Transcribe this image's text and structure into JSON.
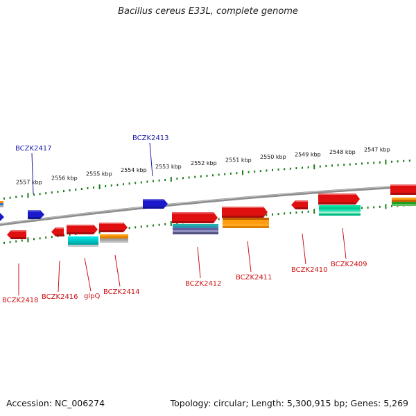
{
  "title": "Bacillus cereus E33L, complete genome",
  "footer": {
    "accession": "Accession: NC_006274",
    "summary": "Topology: circular; Length: 5,300,915 bp; Genes: 5,269"
  },
  "colors": {
    "backbone": "#8c8c8c",
    "ticks": "#1a7a1a",
    "top_gene": "#1a1acc",
    "bottom_gene": "#e01010",
    "top_label": "#1a1aa8",
    "bottom_label": "#cc1010"
  },
  "scale_labels": [
    "2557 kbp",
    "2556 kbp",
    "2555 kbp",
    "2554 kbp",
    "2553 kbp",
    "2552 kbp",
    "2551 kbp",
    "2550 kbp",
    "2549 kbp",
    "2548 kbp",
    "2547 kbp"
  ],
  "top_genes": [
    {
      "label": "BCZK2417"
    },
    {
      "label": "BCZK2413"
    }
  ],
  "bottom_genes": [
    {
      "label": "BCZK2418"
    },
    {
      "label": "BCZK2416"
    },
    {
      "label": "glpQ"
    },
    {
      "label": "BCZK2414"
    },
    {
      "label": "BCZK2412"
    },
    {
      "label": "BCZK2411"
    },
    {
      "label": "BCZK2410"
    },
    {
      "label": "BCZK2409"
    }
  ]
}
